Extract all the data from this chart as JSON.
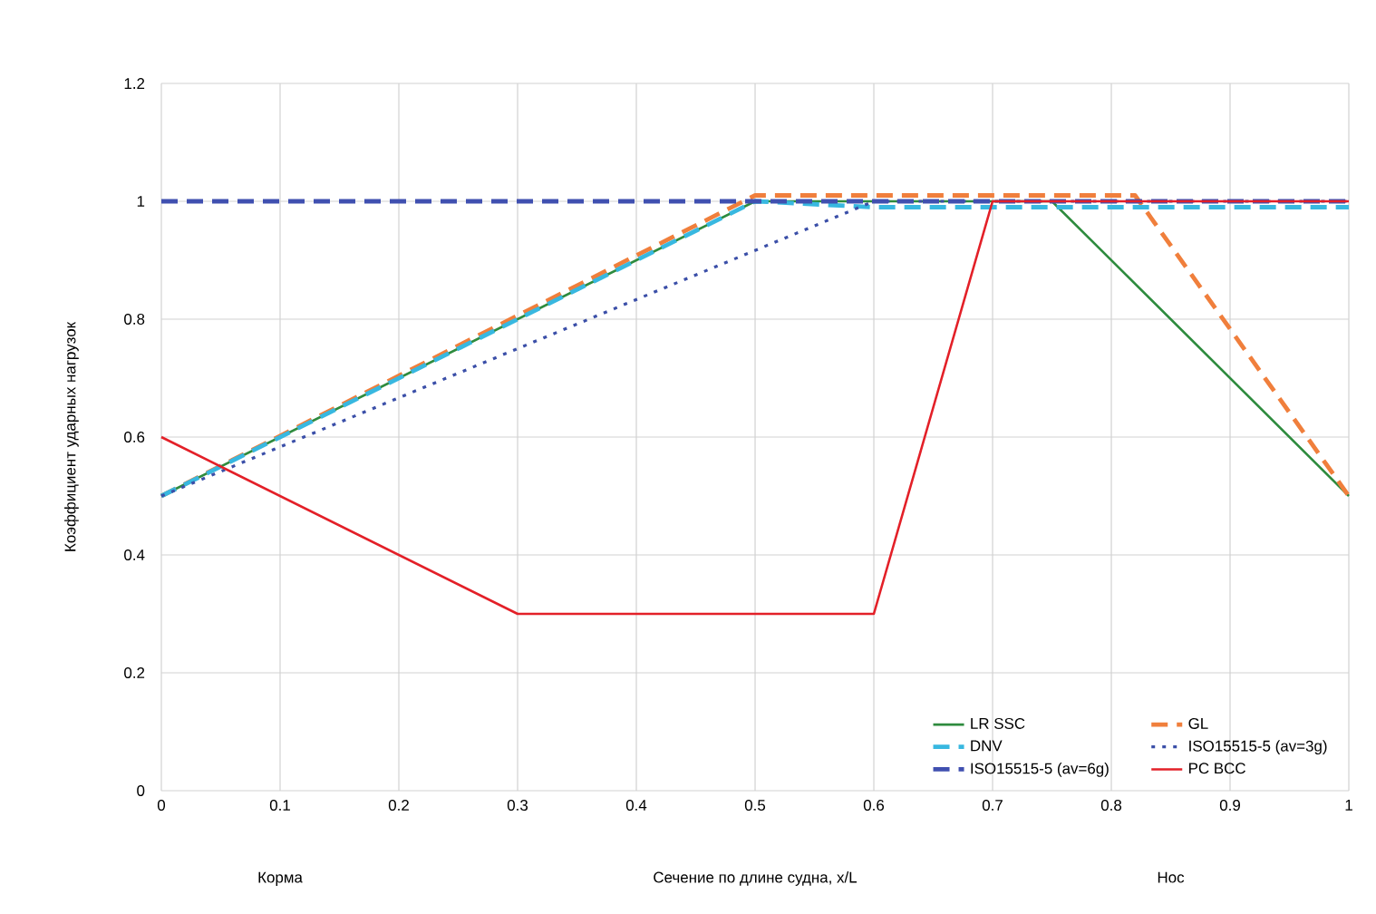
{
  "chart_data": {
    "type": "line",
    "xlabel": "Сечение по длине судна, x/L",
    "ylabel": "Коэффициент ударных нагрузок",
    "annotations": [
      "Корма",
      "Нос"
    ],
    "xlim": [
      0,
      1
    ],
    "ylim": [
      0,
      1.2
    ],
    "xticks": [
      0,
      0.1,
      0.2,
      0.3,
      0.4,
      0.5,
      0.6,
      0.7,
      0.8,
      0.9,
      1
    ],
    "yticks": [
      0,
      0.2,
      0.4,
      0.6,
      0.8,
      1,
      1.2
    ],
    "grid": true,
    "legend": "bottom right",
    "series": [
      {
        "name": "LR SSC",
        "color": "#2e8b3e",
        "line_style": "solid",
        "x": [
          0,
          0.5,
          0.75,
          1
        ],
        "values": [
          0.5,
          1,
          1,
          0.5
        ]
      },
      {
        "name": "GL",
        "color": "#f07f3c",
        "line_style": "dashed",
        "x": [
          0,
          0.5,
          0.82,
          1
        ],
        "values": [
          0.5,
          1.01,
          1.01,
          0.5
        ]
      },
      {
        "name": "DNV",
        "color": "#38b8e0",
        "line_style": "dashed",
        "x": [
          0,
          0.5,
          0.6,
          1
        ],
        "values": [
          0.5,
          1,
          0.99,
          0.99
        ]
      },
      {
        "name": "ISO15515-5 (av=3g)",
        "color": "#3b4fa8",
        "line_style": "dotted",
        "x": [
          0,
          0.6,
          1
        ],
        "values": [
          0.5,
          1,
          1
        ]
      },
      {
        "name": "ISO15515-5 (av=6g)",
        "color": "#4050b0",
        "line_style": "dashed",
        "x": [
          0,
          1
        ],
        "values": [
          1,
          1
        ]
      },
      {
        "name": "PC BCC",
        "color": "#e32028",
        "line_style": "solid",
        "x": [
          0,
          0.3,
          0.6,
          0.7,
          1
        ],
        "values": [
          0.6,
          0.3,
          0.3,
          1,
          1
        ]
      }
    ]
  }
}
